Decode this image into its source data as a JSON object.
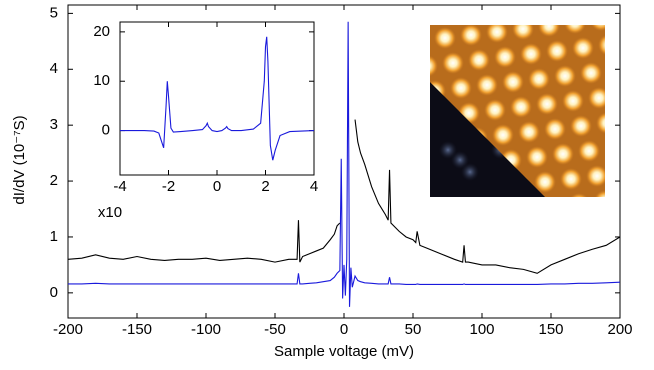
{
  "chart_data": [
    {
      "type": "line",
      "x_label": "Sample voltage (mV)",
      "y_label": "dI/dV (10⁻⁷S)",
      "annotation": "x10",
      "xlim": [
        -200,
        200
      ],
      "ylim": [
        -0.45,
        5.15
      ],
      "xticks": [
        -200,
        -150,
        -100,
        -50,
        0,
        50,
        100,
        150,
        200
      ],
      "yticks": [
        0,
        1,
        2,
        3,
        4,
        5
      ],
      "x": [
        -200,
        -190,
        -180,
        -170,
        -160,
        -150,
        -140,
        -130,
        -120,
        -110,
        -100,
        -90,
        -80,
        -70,
        -60,
        -50,
        -40,
        -34,
        -33,
        -32,
        -30,
        -25,
        -20,
        -15,
        -10,
        -7,
        -5,
        -3,
        -2,
        -1,
        0,
        1,
        2,
        3,
        4,
        5,
        6,
        8,
        10,
        12,
        15,
        20,
        25,
        30,
        32,
        33,
        34,
        40,
        45,
        50,
        52,
        53,
        55,
        60,
        70,
        80,
        86,
        87,
        88,
        90,
        100,
        110,
        120,
        130,
        140,
        150,
        160,
        170,
        180,
        190,
        200
      ],
      "series": [
        {
          "color": "#000000",
          "values": [
            0.6,
            0.62,
            0.68,
            0.62,
            0.6,
            0.65,
            0.6,
            0.58,
            0.6,
            0.6,
            0.62,
            0.58,
            0.6,
            0.62,
            0.6,
            0.55,
            0.6,
            0.6,
            1.3,
            0.55,
            0.65,
            0.7,
            0.75,
            0.8,
            0.95,
            1.05,
            1.2,
            1.25,
            null,
            null,
            null,
            null,
            null,
            null,
            null,
            null,
            null,
            3.1,
            2.7,
            2.5,
            2.3,
            1.9,
            1.6,
            1.4,
            1.3,
            2.2,
            1.25,
            1.1,
            1.0,
            0.95,
            0.9,
            1.1,
            0.85,
            0.8,
            0.7,
            0.6,
            0.55,
            0.85,
            0.55,
            0.55,
            0.5,
            0.5,
            0.45,
            0.42,
            0.35,
            0.5,
            0.6,
            0.7,
            0.78,
            0.85,
            1.0
          ]
        },
        {
          "color": "#1a1adc",
          "values": [
            0.16,
            0.16,
            0.17,
            0.16,
            0.16,
            0.16,
            0.16,
            0.16,
            0.16,
            0.16,
            0.16,
            0.16,
            0.16,
            0.16,
            0.16,
            0.16,
            0.16,
            0.16,
            0.35,
            0.16,
            0.16,
            0.17,
            0.18,
            0.2,
            0.22,
            0.28,
            0.35,
            0.4,
            2.4,
            -0.1,
            0.5,
            -0.05,
            0.6,
            4.85,
            -0.25,
            0.45,
            0.1,
            0.3,
            0.22,
            0.2,
            0.18,
            0.17,
            0.16,
            0.16,
            0.16,
            0.28,
            0.16,
            0.16,
            0.15,
            0.15,
            0.15,
            0.16,
            0.15,
            0.15,
            0.15,
            0.15,
            0.15,
            0.16,
            0.15,
            0.15,
            0.15,
            0.15,
            0.15,
            0.15,
            0.15,
            0.16,
            0.16,
            0.17,
            0.17,
            0.18,
            0.19
          ]
        }
      ]
    },
    {
      "type": "line",
      "xlim": [
        -4,
        4
      ],
      "ylim": [
        -9,
        22
      ],
      "xticks": [
        -4,
        -2,
        0,
        2,
        4
      ],
      "yticks": [
        0,
        10,
        20
      ],
      "x": [
        -4,
        -3,
        -2.6,
        -2.4,
        -2.3,
        -2.2,
        -2.1,
        -2.05,
        -2,
        -1.9,
        -1.8,
        -1.5,
        -1,
        -0.6,
        -0.45,
        -0.4,
        -0.35,
        -0.2,
        0,
        0.2,
        0.35,
        0.4,
        0.45,
        0.6,
        1,
        1.5,
        1.8,
        1.95,
        2,
        2.05,
        2.1,
        2.2,
        2.3,
        2.4,
        2.6,
        3,
        4
      ],
      "series": [
        {
          "color": "#1a1adc",
          "values": [
            0,
            0,
            -0.1,
            -0.5,
            -2,
            -3.5,
            5,
            10,
            7,
            0.5,
            -0.3,
            -0.2,
            0,
            0.2,
            1,
            1.5,
            0.8,
            0,
            -0.2,
            0,
            0.5,
            0.8,
            0.4,
            0,
            0,
            0.3,
            1.5,
            10,
            17,
            19,
            14,
            -3,
            -6,
            -4,
            -1,
            -0.2,
            0
          ]
        }
      ]
    }
  ]
}
